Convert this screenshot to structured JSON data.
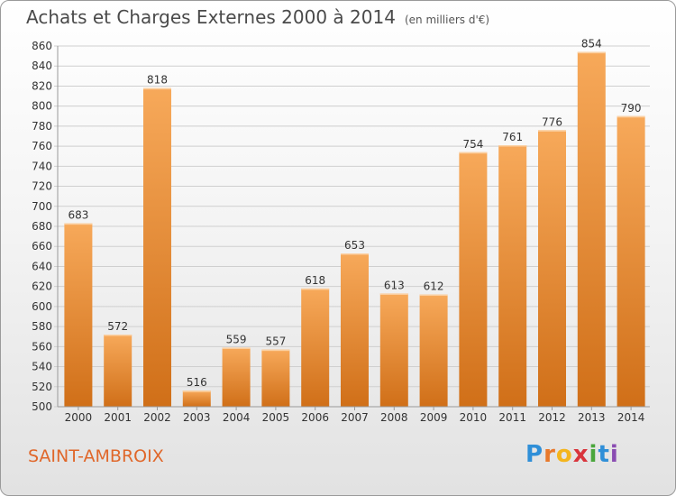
{
  "title": "Achats et Charges Externes 2000 à 2014",
  "unit": "(en milliers d'€)",
  "city": "SAINT-AMBROIX",
  "logo": {
    "text": "Proxiti",
    "letters": [
      "P",
      "r",
      "o",
      "x",
      "i",
      "t",
      "i"
    ]
  },
  "colors": {
    "bar_light": "#f7a95a",
    "bar_dark": "#d06f18",
    "title": "#4a4a4a",
    "city": "#e0672a"
  },
  "chart_data": {
    "type": "bar",
    "categories": [
      "2000",
      "2001",
      "2002",
      "2003",
      "2004",
      "2005",
      "2006",
      "2007",
      "2008",
      "2009",
      "2010",
      "2011",
      "2012",
      "2013",
      "2014"
    ],
    "values": [
      683,
      572,
      818,
      516,
      559,
      557,
      618,
      653,
      613,
      612,
      754,
      761,
      776,
      854,
      790
    ],
    "ylim": [
      500,
      860
    ],
    "yticks": [
      500,
      520,
      540,
      560,
      580,
      600,
      620,
      640,
      660,
      680,
      700,
      720,
      740,
      760,
      780,
      800,
      820,
      840,
      860
    ],
    "grid": true
  }
}
